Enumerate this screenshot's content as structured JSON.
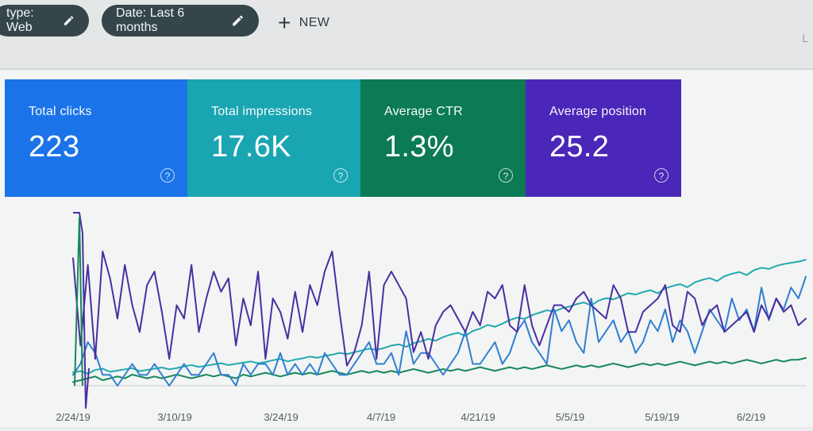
{
  "filters": {
    "type_chip": "type: Web",
    "date_chip": "Date: Last 6 months",
    "new_button": "NEW",
    "top_right_label": "L"
  },
  "cards": [
    {
      "label": "Total clicks",
      "value": "223",
      "color": "#1a73e8"
    },
    {
      "label": "Total impressions",
      "value": "17.6K",
      "color": "#1aa5b3"
    },
    {
      "label": "Average CTR",
      "value": "1.3%",
      "color": "#0c7a55"
    },
    {
      "label": "Average position",
      "value": "25.2",
      "color": "#4a27b8"
    }
  ],
  "chart_data": {
    "type": "line",
    "x_tick_labels": [
      "2/24/19",
      "3/10/19",
      "3/24/19",
      "4/7/19",
      "4/21/19",
      "5/5/19",
      "5/19/19",
      "6/2/19"
    ],
    "grid": false,
    "series_colors": {
      "clicks": "#2f7fd0",
      "impressions": "#22a9b0",
      "ctr": "#16875a",
      "position": "#4a2fa0"
    },
    "position_series": [
      27,
      14,
      26,
      12,
      28,
      24,
      18,
      26,
      20,
      16,
      23,
      25,
      19,
      12,
      20,
      18,
      26,
      16,
      21,
      25,
      22,
      24,
      14,
      21,
      17,
      25,
      12,
      21,
      19,
      15,
      22,
      16,
      23,
      20,
      25,
      28,
      19,
      11,
      13,
      17,
      25,
      12,
      23,
      25,
      23,
      21,
      13,
      16,
      12,
      17,
      19,
      20,
      18,
      16,
      19,
      17,
      22,
      21,
      23,
      17,
      16,
      23,
      17,
      14,
      17,
      20,
      20,
      19,
      21,
      22,
      20,
      19,
      18,
      23,
      21,
      16,
      16,
      19,
      20,
      21,
      23,
      17,
      16,
      22,
      21,
      17,
      19,
      20,
      16,
      17,
      18,
      19,
      16,
      20,
      18,
      21,
      19,
      20,
      17,
      18
    ],
    "clicks_series": [
      1,
      2,
      4,
      3,
      1,
      1,
      0,
      1,
      2,
      1,
      1,
      2,
      1,
      0,
      1,
      2,
      1,
      1,
      2,
      3,
      1,
      1,
      0,
      2,
      1,
      2,
      2,
      1,
      3,
      1,
      2,
      1,
      2,
      1,
      3,
      2,
      1,
      1,
      2,
      3,
      4,
      2,
      2,
      3,
      1,
      5,
      2,
      3,
      3,
      2,
      1,
      2,
      3,
      5,
      2,
      2,
      3,
      4,
      2,
      3,
      5,
      6,
      4,
      3,
      2,
      7,
      5,
      6,
      4,
      3,
      8,
      4,
      5,
      6,
      4,
      5,
      3,
      4,
      6,
      5,
      7,
      4,
      6,
      5,
      3,
      5,
      7,
      6,
      5,
      8,
      6,
      7,
      5,
      9,
      6,
      8,
      7,
      9,
      8,
      10
    ],
    "impressions_series": [
      40,
      42,
      38,
      44,
      46,
      41,
      43,
      45,
      47,
      42,
      44,
      46,
      48,
      45,
      47,
      50,
      52,
      49,
      51,
      53,
      55,
      52,
      54,
      56,
      58,
      55,
      57,
      60,
      62,
      58,
      61,
      63,
      66,
      64,
      67,
      69,
      72,
      70,
      73,
      76,
      79,
      77,
      80,
      84,
      86,
      82,
      88,
      91,
      95,
      92,
      98,
      102,
      105,
      100,
      108,
      112,
      118,
      115,
      120,
      126,
      130,
      128,
      134,
      138,
      142,
      140,
      145,
      148,
      152,
      155,
      150,
      158,
      162,
      160,
      165,
      170,
      168,
      172,
      175,
      170,
      178,
      182,
      185,
      180,
      188,
      192,
      195,
      190,
      198,
      202,
      205,
      200,
      208,
      212,
      210,
      215,
      218,
      220,
      222,
      225
    ],
    "ctr_series": [
      0.8,
      0.9,
      1.0,
      1.1,
      0.9,
      1.0,
      1.1,
      1.0,
      1.2,
      1.1,
      1.0,
      1.1,
      1.0,
      1.1,
      1.2,
      1.1,
      1.0,
      1.1,
      1.2,
      1.1,
      1.2,
      1.1,
      1.0,
      1.2,
      1.1,
      1.2,
      1.3,
      1.2,
      1.1,
      1.2,
      1.3,
      1.2,
      1.3,
      1.2,
      1.3,
      1.4,
      1.3,
      1.2,
      1.3,
      1.4,
      1.3,
      1.4,
      1.3,
      1.4,
      1.3,
      1.4,
      1.5,
      1.4,
      1.3,
      1.4,
      1.5,
      1.4,
      1.5,
      1.4,
      1.5,
      1.6,
      1.5,
      1.4,
      1.5,
      1.6,
      1.5,
      1.6,
      1.5,
      1.6,
      1.7,
      1.6,
      1.5,
      1.6,
      1.7,
      1.6,
      1.7,
      1.6,
      1.7,
      1.8,
      1.7,
      1.6,
      1.7,
      1.8,
      1.7,
      1.8,
      1.7,
      1.8,
      1.9,
      1.8,
      1.7,
      1.8,
      1.9,
      1.8,
      1.9,
      1.8,
      1.9,
      2.0,
      1.9,
      1.8,
      1.9,
      2.0,
      1.9,
      2.0,
      2.0,
      2.1
    ]
  }
}
